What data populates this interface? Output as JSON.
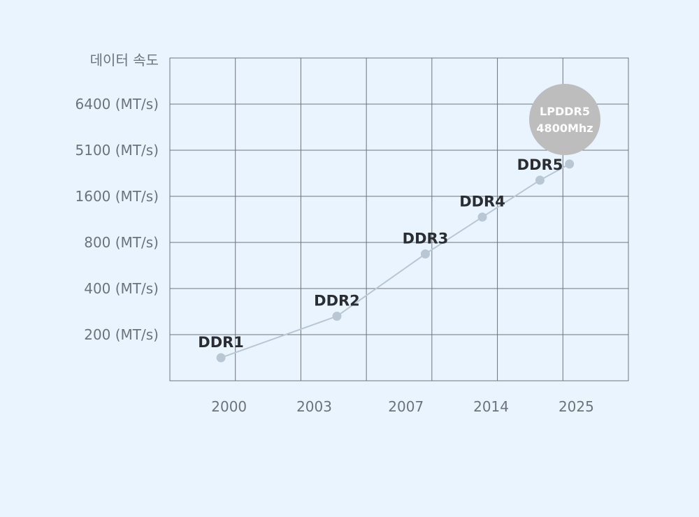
{
  "chart_data": {
    "type": "line",
    "y_title": "데이터 속도",
    "y_ticks": [
      "6400 (MT/s)",
      "5100 (MT/s)",
      "1600 (MT/s)",
      "800 (MT/s)",
      "400 (MT/s)",
      "200 (MT/s)"
    ],
    "x_ticks": [
      "2000",
      "2003",
      "2007",
      "2014",
      "2025"
    ],
    "grid": true,
    "series": [
      {
        "points": [
          {
            "label": "DDR1",
            "x": 0.78,
            "y": 0.5
          },
          {
            "label": "DDR2",
            "x": 2.55,
            "y": 1.4
          },
          {
            "label": "DDR3",
            "x": 3.9,
            "y": 2.75
          },
          {
            "label": "DDR4",
            "x": 4.77,
            "y": 3.55
          },
          {
            "label": "DDR5",
            "x": 5.65,
            "y": 4.35
          },
          {
            "label": "",
            "x": 6.1,
            "y": 4.7
          }
        ]
      }
    ],
    "callout": {
      "line1": "LPDDR5",
      "line2": "4800Mhz",
      "color": "#bdbdbd"
    },
    "colors": {
      "grid": "#6d737b",
      "line": "#b9c7d4",
      "point": "#b9c7d4",
      "background": "#eaf4fe"
    }
  }
}
